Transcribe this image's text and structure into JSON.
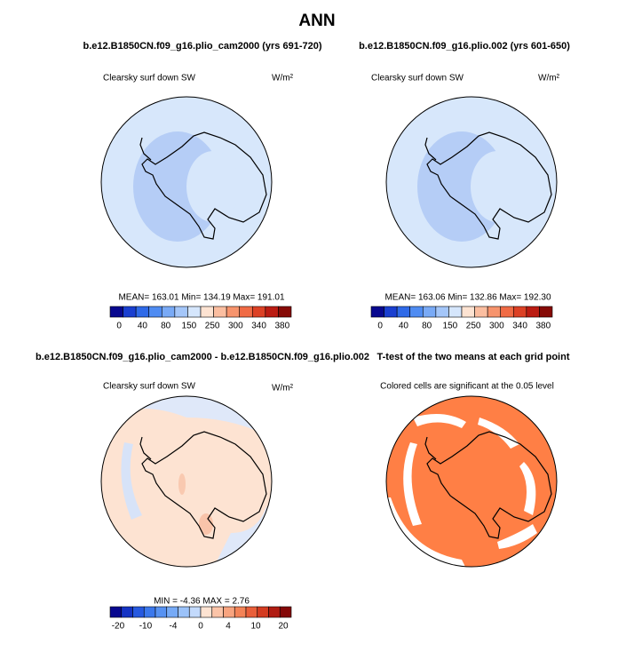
{
  "title": "ANN",
  "panels": [
    {
      "heading": "b.e12.B1850CN.f09_g16.plio_cam2000 (yrs 691-720)",
      "label": "Clearsky surf down SW",
      "units": "W/m²",
      "stats": "MEAN=  163.01   Min=  134.19   Max=  191.01",
      "colorbar_labels": [
        0,
        40,
        80,
        150,
        250,
        300,
        340,
        380
      ]
    },
    {
      "heading": "b.e12.B1850CN.f09_g16.plio.002 (yrs 601-650)",
      "label": "Clearsky surf down SW",
      "units": "W/m²",
      "stats": "MEAN=  163.06   Min=  132.86   Max=  192.30",
      "colorbar_labels": [
        0,
        40,
        80,
        150,
        250,
        300,
        340,
        380
      ]
    },
    {
      "heading": "b.e12.B1850CN.f09_g16.plio_cam2000 - b.e12.B1850CN.f09_g16.plio.002",
      "label": "Clearsky surf down SW",
      "units": "W/m²",
      "stats": "MIN  =   -4.36  MAX  =     2.76",
      "colorbar_labels": [
        -20,
        -10,
        -4,
        0,
        4,
        10,
        20
      ]
    },
    {
      "heading": "T-test of the two means at each grid point",
      "label": "Colored cells are significant at the 0.05 level"
    }
  ]
}
